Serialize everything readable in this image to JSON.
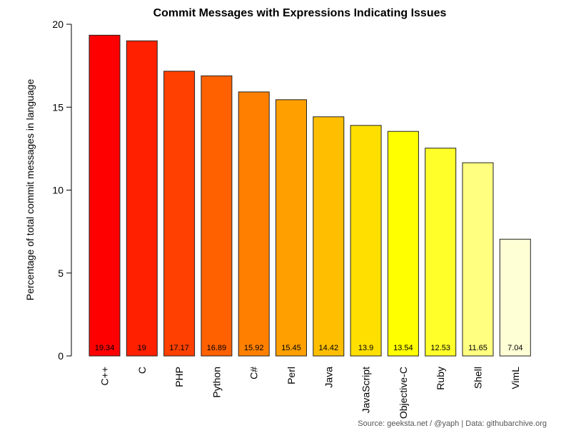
{
  "chart_data": {
    "type": "bar",
    "title": "Commit Messages with Expressions Indicating Issues",
    "ylabel": "Percentage of total commit messages in language",
    "xlabel": "",
    "ylim": [
      0,
      20
    ],
    "yticks": [
      0,
      5,
      10,
      15,
      20
    ],
    "categories": [
      "C++",
      "C",
      "PHP",
      "Python",
      "C#",
      "Perl",
      "Java",
      "JavaScript",
      "Objective-C",
      "Ruby",
      "Shell",
      "VimL"
    ],
    "values": [
      19.34,
      19,
      17.17,
      16.89,
      15.92,
      15.45,
      14.42,
      13.9,
      13.54,
      12.53,
      11.65,
      7.04
    ],
    "value_labels": [
      "19.34",
      "19",
      "17.17",
      "16.89",
      "15.92",
      "15.45",
      "14.42",
      "13.9",
      "13.54",
      "12.53",
      "11.65",
      "7.04"
    ],
    "colors": [
      "#FF0000",
      "#FF2000",
      "#FF4000",
      "#FF6000",
      "#FF8000",
      "#FF9F00",
      "#FFBF00",
      "#FFDF00",
      "#FFFF00",
      "#FFFF2A",
      "#FFFF80",
      "#FFFFD5"
    ],
    "grid": false,
    "legend": "none"
  },
  "source_note": "Source: geeksta.net / @yaph | Data: githubarchive.org"
}
